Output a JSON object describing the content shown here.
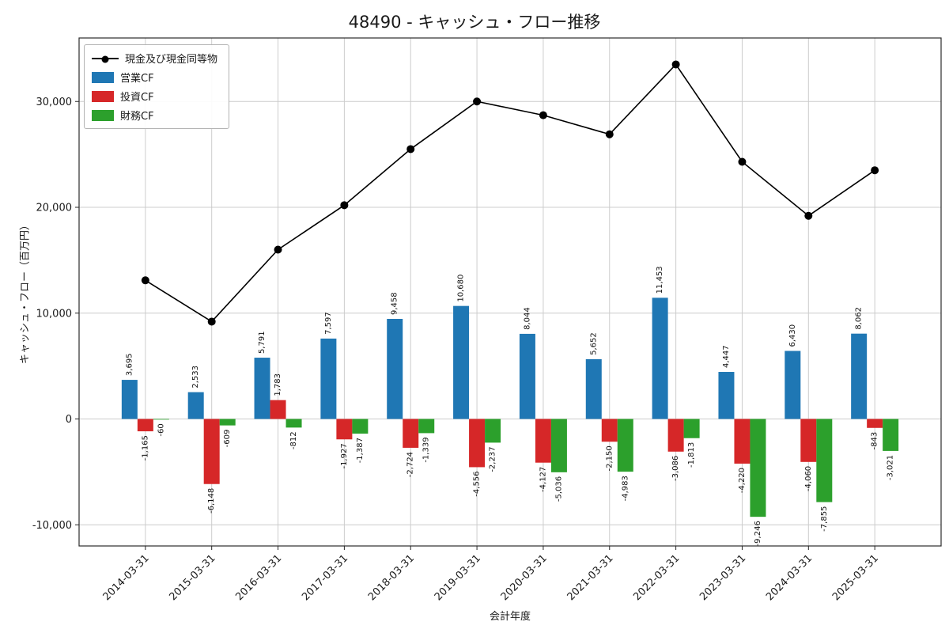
{
  "chart_data": {
    "type": "bar",
    "subtype": "grouped-bars-with-line",
    "title": "48490 - キャッシュ・フロー推移",
    "xlabel": "会計年度",
    "ylabel": "キャッシュ・フロー（百万円）",
    "categories": [
      "2014-03-31",
      "2015-03-31",
      "2016-03-31",
      "2017-03-31",
      "2018-03-31",
      "2019-03-31",
      "2020-03-31",
      "2021-03-31",
      "2022-03-31",
      "2023-03-31",
      "2024-03-31",
      "2025-03-31"
    ],
    "series": [
      {
        "name": "営業CF",
        "color": "#1f77b4",
        "values": [
          3695,
          2533,
          5791,
          7597,
          9458,
          10680,
          8044,
          5652,
          11453,
          4447,
          6430,
          8062
        ]
      },
      {
        "name": "投資CF",
        "color": "#d62728",
        "values": [
          -1165,
          -6148,
          1783,
          -1927,
          -2724,
          -4556,
          -4127,
          -2150,
          -3086,
          -4220,
          -4060,
          -843
        ]
      },
      {
        "name": "財務CF",
        "color": "#2ca02c",
        "values": [
          -60,
          -609,
          -812,
          -1387,
          -1339,
          -2237,
          -5036,
          -4983,
          -1813,
          -9246,
          -7855,
          -3021
        ]
      }
    ],
    "line": {
      "name": "現金及び現金同等物",
      "color": "#000000",
      "values": [
        13100,
        9200,
        16000,
        20200,
        25500,
        30000,
        28700,
        26900,
        33500,
        24300,
        19200,
        23500
      ]
    },
    "yticks": [
      -10000,
      0,
      10000,
      20000,
      30000
    ],
    "ylim": [
      -12000,
      36000
    ],
    "grid": true,
    "legend_position": "upper left"
  }
}
